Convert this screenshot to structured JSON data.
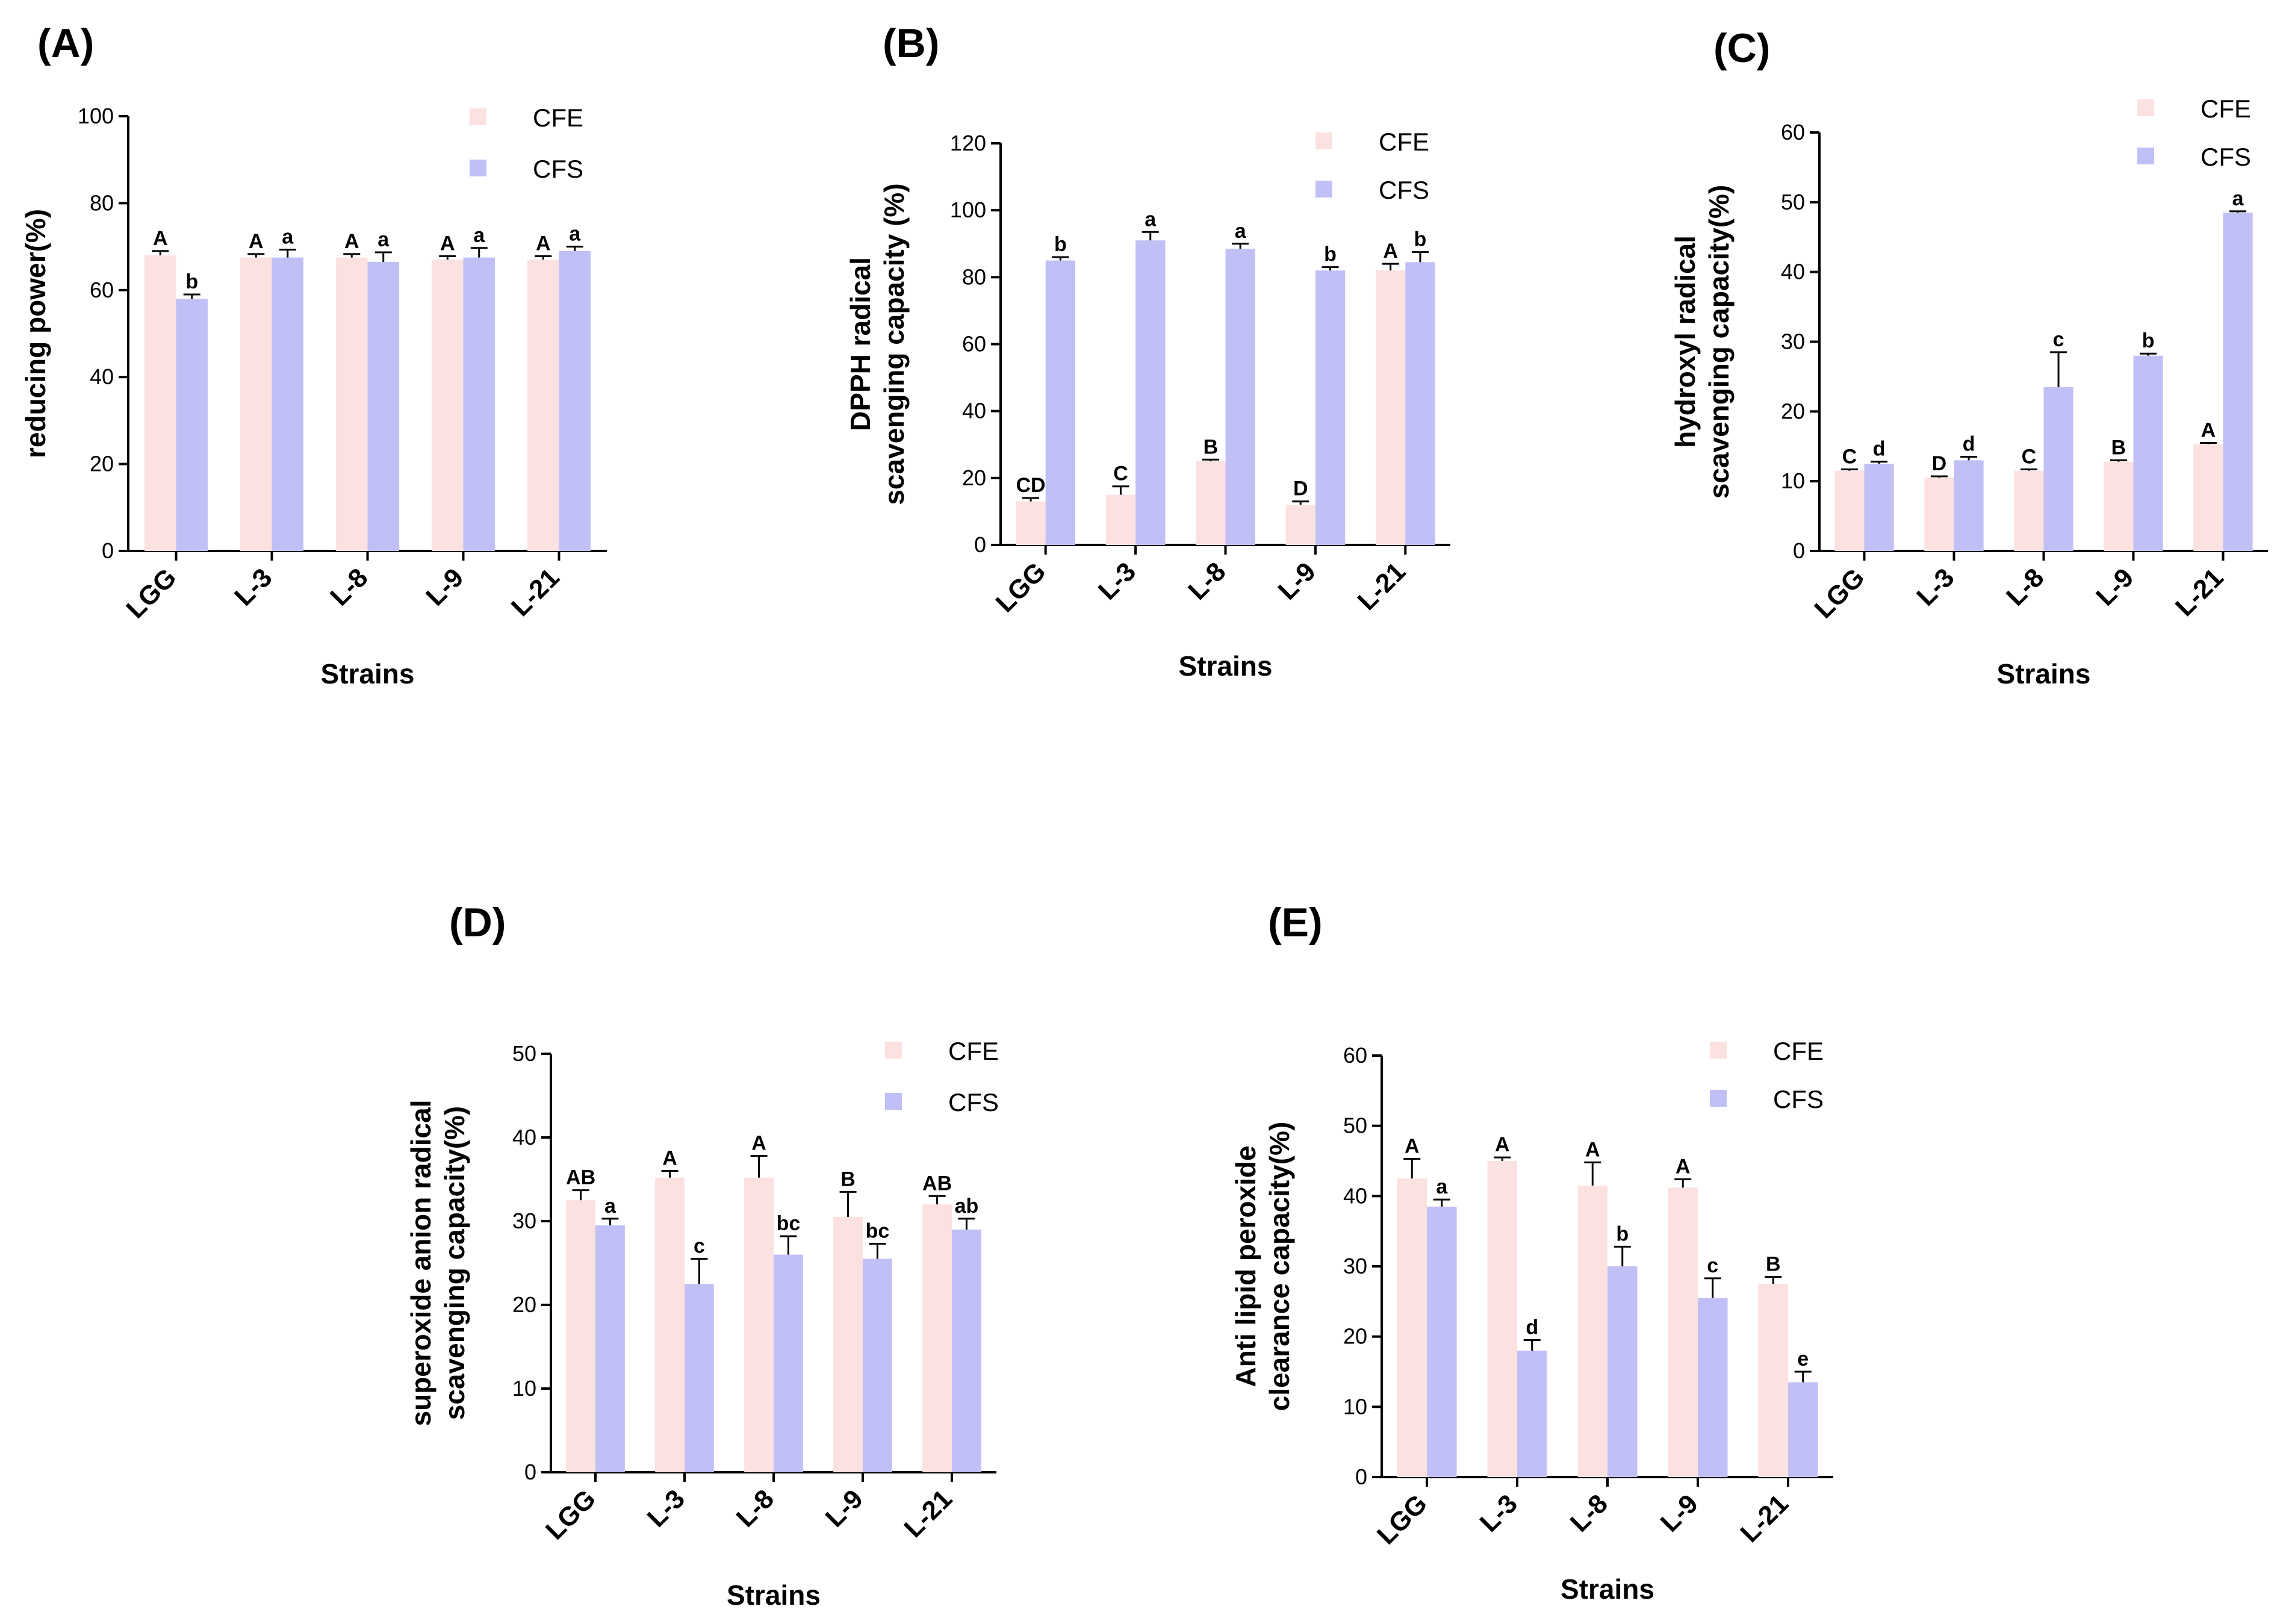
{
  "colors": {
    "CFE": "#fce1e1",
    "CFS": "#c0c0f6",
    "axis": "#000000"
  },
  "chart_data": [
    {
      "type": "bar",
      "panel": "(A)",
      "ylabel_lines": [
        "reducing  power(%)"
      ],
      "xlabel": "Strains",
      "categories": [
        "LGG",
        "L-3",
        "L-8",
        "L-9",
        "L-21"
      ],
      "ylim": [
        0,
        100
      ],
      "yticks": [
        0,
        20,
        40,
        60,
        80,
        100
      ],
      "legend": "top-right",
      "series": [
        {
          "name": "CFE",
          "values": [
            68,
            67.5,
            67.5,
            67,
            67
          ],
          "errors": [
            1,
            0.8,
            0.8,
            0.8,
            0.8
          ],
          "labels": [
            "A",
            "A",
            "A",
            "A",
            "A"
          ]
        },
        {
          "name": "CFS",
          "values": [
            58,
            67.5,
            66.5,
            67.5,
            69
          ],
          "errors": [
            1,
            1.8,
            2.2,
            2.2,
            1
          ],
          "labels": [
            "b",
            "a",
            "a",
            "a",
            "a"
          ]
        }
      ]
    },
    {
      "type": "bar",
      "panel": "(B)",
      "ylabel_lines": [
        "DPPH radical",
        "scavenging capacity (%)"
      ],
      "xlabel": "Strains",
      "categories": [
        "LGG",
        "L-3",
        "L-8",
        "L-9",
        "L-21"
      ],
      "ylim": [
        0,
        120
      ],
      "yticks": [
        0,
        20,
        40,
        60,
        80,
        100,
        120
      ],
      "legend": "top-right",
      "series": [
        {
          "name": "CFE",
          "values": [
            13,
            15,
            25,
            12,
            82
          ],
          "errors": [
            1,
            2.5,
            0.5,
            1,
            2
          ],
          "labels": [
            "CD",
            "C",
            "B",
            "D",
            "A"
          ]
        },
        {
          "name": "CFS",
          "values": [
            85,
            91,
            88.5,
            82,
            84.5
          ],
          "errors": [
            1,
            2.5,
            1.5,
            1,
            3
          ],
          "labels": [
            "b",
            "a",
            "a",
            "b",
            "b"
          ]
        }
      ]
    },
    {
      "type": "bar",
      "panel": "(C)",
      "ylabel_lines": [
        "hydroxyl radical",
        "scavenging capacity(%)"
      ],
      "xlabel": "Strains",
      "categories": [
        "LGG",
        "L-3",
        "L-8",
        "L-9",
        "L-21"
      ],
      "ylim": [
        0,
        60
      ],
      "yticks": [
        0,
        10,
        20,
        30,
        40,
        50,
        60
      ],
      "legend": "top-right",
      "series": [
        {
          "name": "CFE",
          "values": [
            11.5,
            10.5,
            11.5,
            12.8,
            15.3
          ],
          "errors": [
            0.2,
            0.2,
            0.2,
            0.2,
            0.2
          ],
          "labels": [
            "C",
            "D",
            "C",
            "B",
            "A"
          ]
        },
        {
          "name": "CFS",
          "values": [
            12.5,
            13,
            23.5,
            28,
            48.5
          ],
          "errors": [
            0.3,
            0.5,
            5,
            0.3,
            0.2
          ],
          "labels": [
            "d",
            "d",
            "c",
            "b",
            "a"
          ]
        }
      ]
    },
    {
      "type": "bar",
      "panel": "(D)",
      "ylabel_lines": [
        "superoxide anion radical",
        "scavenging capacity(%)"
      ],
      "xlabel": "Strains",
      "categories": [
        "LGG",
        "L-3",
        "L-8",
        "L-9",
        "L-21"
      ],
      "ylim": [
        0,
        50
      ],
      "yticks": [
        0,
        10,
        20,
        30,
        40,
        50
      ],
      "legend": "top-right",
      "series": [
        {
          "name": "CFE",
          "values": [
            32.5,
            35.2,
            35.2,
            30.5,
            32
          ],
          "errors": [
            1.2,
            0.8,
            2.6,
            3,
            1
          ],
          "labels": [
            "AB",
            "A",
            "A",
            "B",
            "AB"
          ]
        },
        {
          "name": "CFS",
          "values": [
            29.5,
            22.5,
            26,
            25.5,
            29
          ],
          "errors": [
            0.8,
            3,
            2.2,
            1.8,
            1.3
          ],
          "labels": [
            "a",
            "c",
            "bc",
            "bc",
            "ab"
          ]
        }
      ]
    },
    {
      "type": "bar",
      "panel": "(E)",
      "ylabel_lines": [
        "Anti lipid peroxide",
        "clearance capacity(%)"
      ],
      "xlabel": "Strains",
      "categories": [
        "LGG",
        "L-3",
        "L-8",
        "L-9",
        "L-21"
      ],
      "ylim": [
        0,
        60
      ],
      "yticks": [
        0,
        10,
        20,
        30,
        40,
        50,
        60
      ],
      "legend": "top-right",
      "series": [
        {
          "name": "CFE",
          "values": [
            42.5,
            45,
            41.5,
            41.2,
            27.5
          ],
          "errors": [
            2.8,
            0.5,
            3.3,
            1.2,
            1
          ],
          "labels": [
            "A",
            "A",
            "A",
            "A",
            "B"
          ]
        },
        {
          "name": "CFS",
          "values": [
            38.5,
            18,
            30,
            25.5,
            13.5
          ],
          "errors": [
            1,
            1.5,
            2.8,
            2.8,
            1.5
          ],
          "labels": [
            "a",
            "d",
            "b",
            "c",
            "e"
          ]
        }
      ]
    }
  ]
}
